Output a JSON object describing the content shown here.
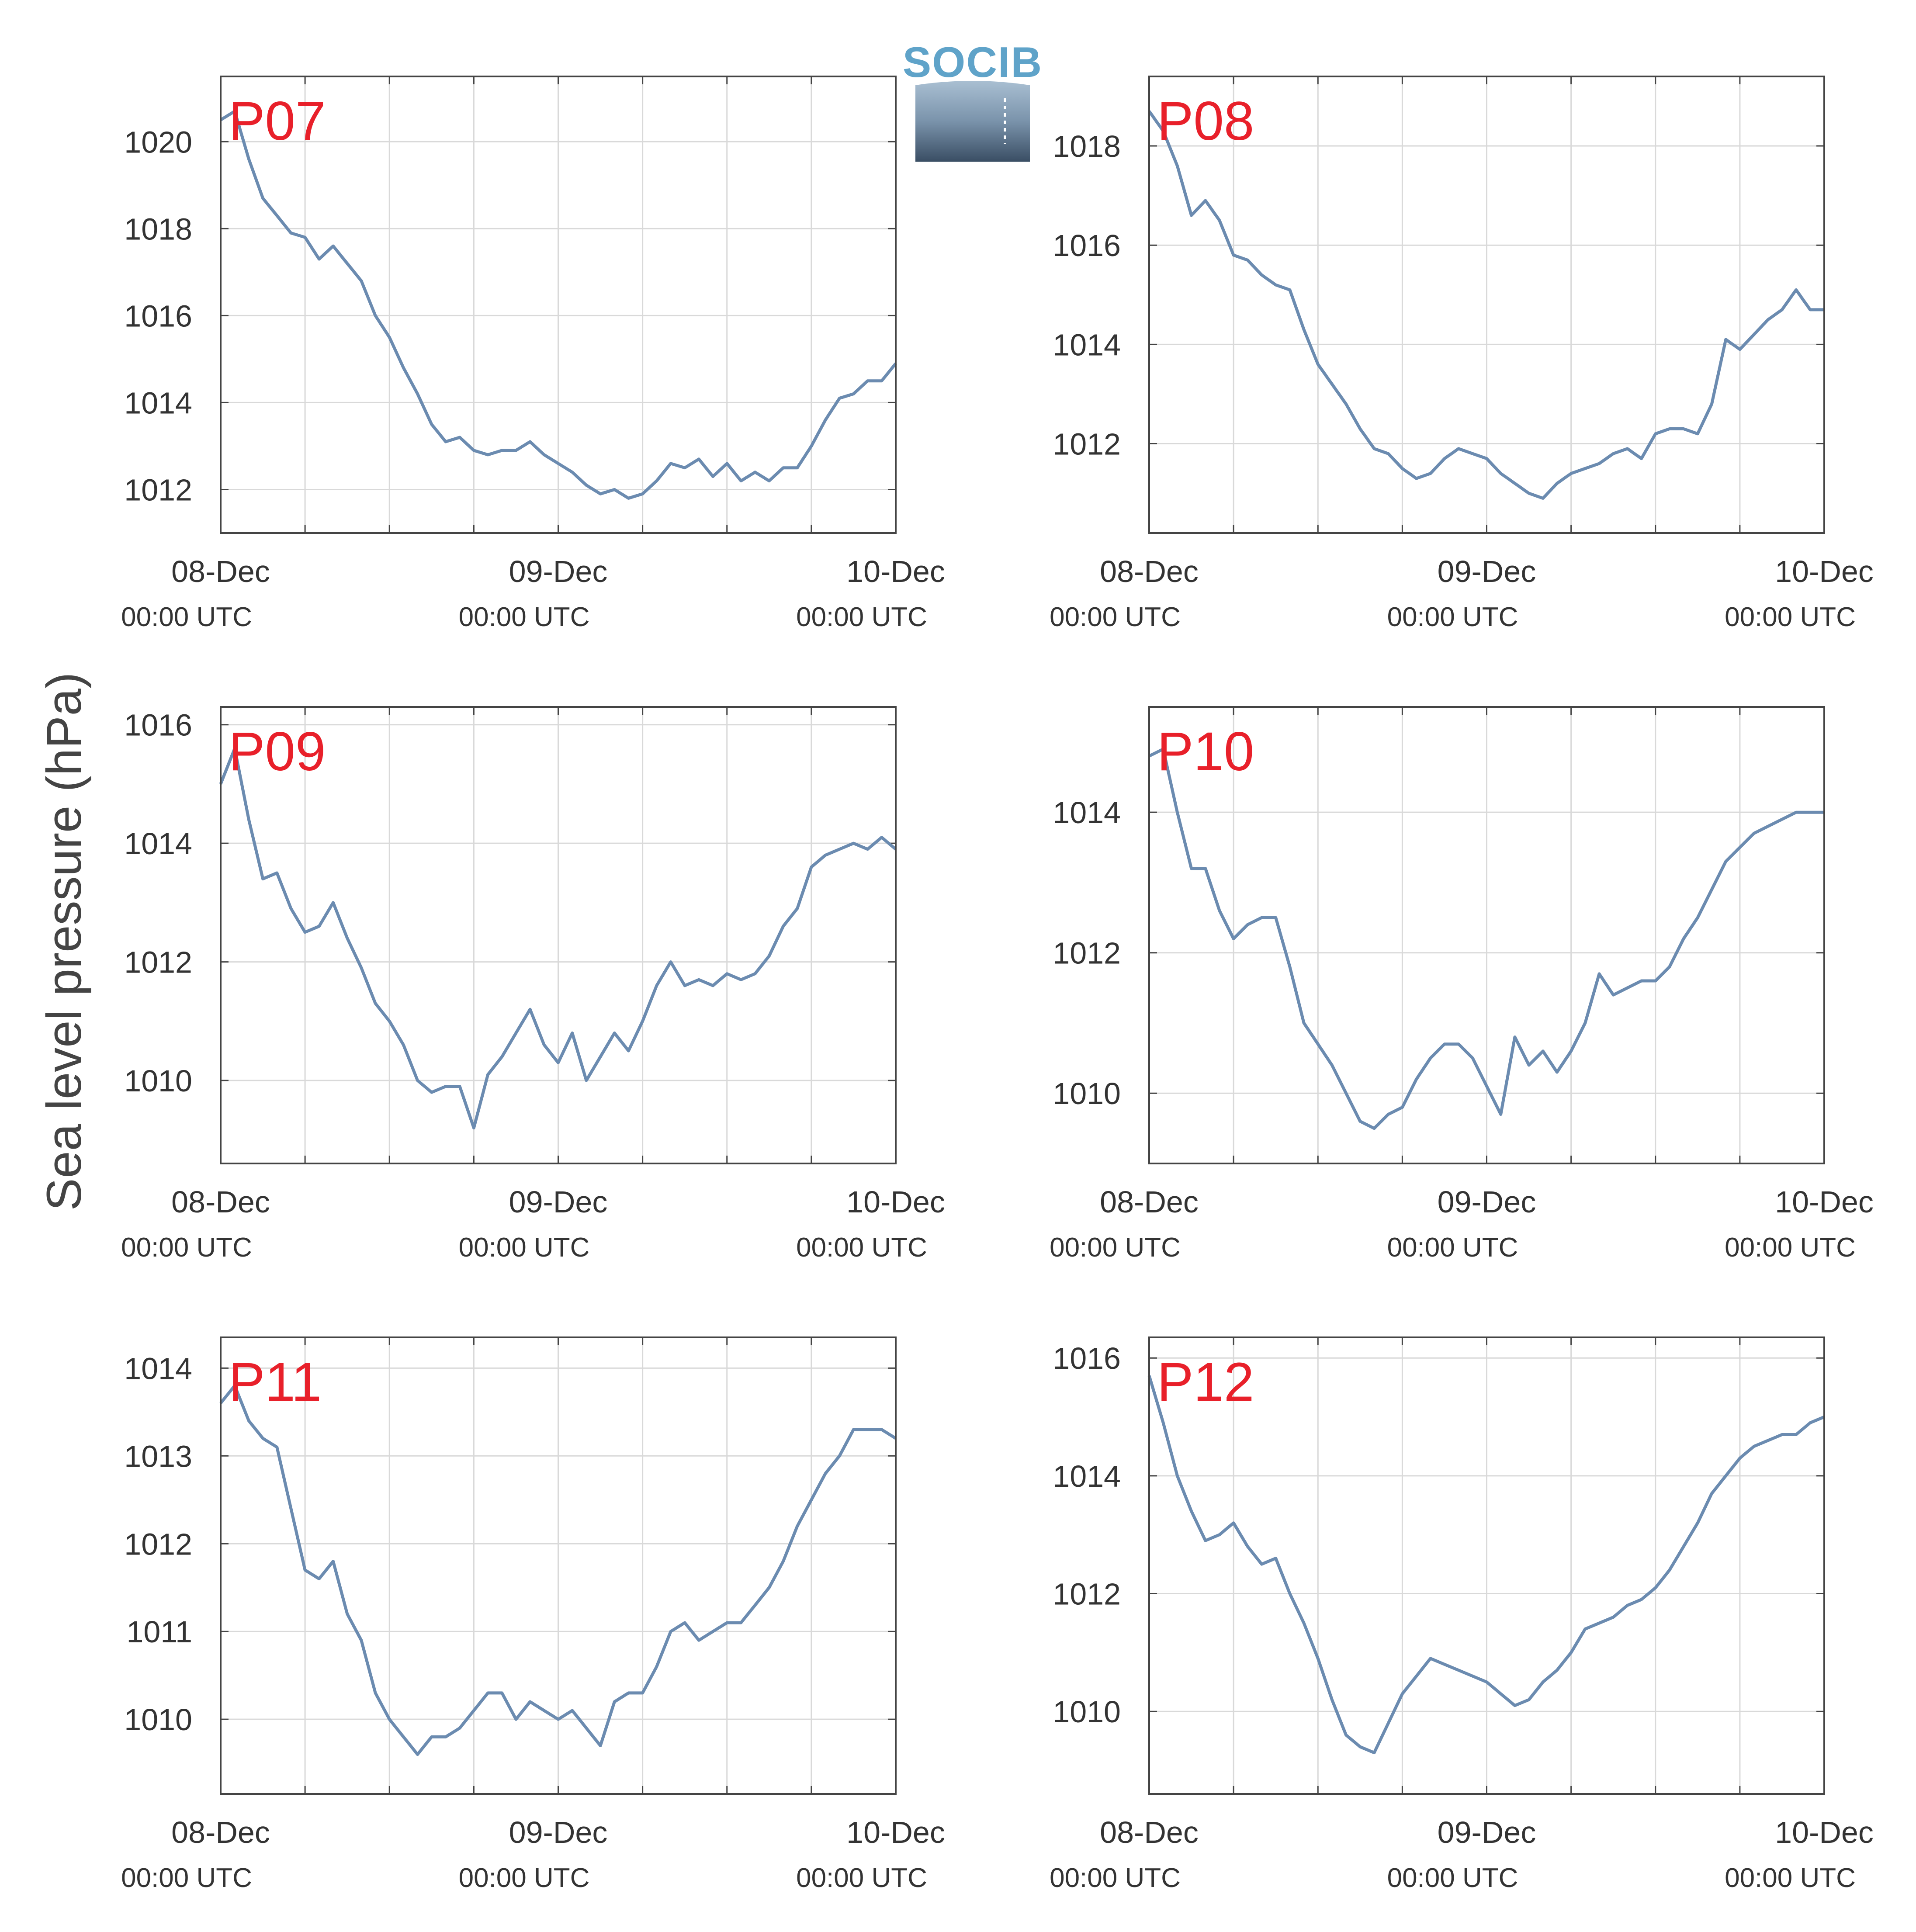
{
  "figure": {
    "ylabel": "Sea level pressure (hPa)",
    "logo_text": "SOCIB",
    "colors": {
      "line": "#6b8bb0",
      "station_label": "#e8202a",
      "axis": "#444444",
      "grid": "#d9d9d9",
      "text": "#333333"
    }
  },
  "chart_data": [
    {
      "type": "line",
      "station": "P07",
      "x_ticks": [
        {
          "date": "08-Dec",
          "time": "00:00 UTC"
        },
        {
          "date": "09-Dec",
          "time": "00:00 UTC"
        },
        {
          "date": "10-Dec",
          "time": "00:00 UTC"
        }
      ],
      "xlim_hours": [
        0,
        48
      ],
      "x_grid_step_hours": 6,
      "ylim": [
        1011,
        1021.5
      ],
      "yticks": [
        1012,
        1014,
        1016,
        1018,
        1020
      ],
      "grid": true,
      "series": [
        {
          "x_hours": [
            0,
            1,
            2,
            3,
            4,
            5,
            6,
            7,
            8,
            9,
            10,
            11,
            12,
            13,
            14,
            15,
            16,
            17,
            18,
            19,
            20,
            21,
            22,
            23,
            24,
            25,
            26,
            27,
            28,
            29,
            30,
            31,
            32,
            33,
            34,
            35,
            36,
            37,
            38,
            39,
            40,
            41,
            42,
            43,
            44,
            45,
            46,
            47,
            48
          ],
          "values": [
            1020.5,
            1020.7,
            1019.6,
            1018.7,
            1018.3,
            1017.9,
            1017.8,
            1017.3,
            1017.6,
            1017.2,
            1016.8,
            1016.0,
            1015.5,
            1014.8,
            1014.2,
            1013.5,
            1013.1,
            1013.2,
            1012.9,
            1012.8,
            1012.9,
            1012.9,
            1013.1,
            1012.8,
            1012.6,
            1012.4,
            1012.1,
            1011.9,
            1012.0,
            1011.8,
            1011.9,
            1012.2,
            1012.6,
            1012.5,
            1012.7,
            1012.3,
            1012.6,
            1012.2,
            1012.4,
            1012.2,
            1012.5,
            1012.5,
            1013.0,
            1013.6,
            1014.1,
            1014.2,
            1014.5,
            1014.5,
            1014.9
          ]
        }
      ]
    },
    {
      "type": "line",
      "station": "P08",
      "x_ticks": [
        {
          "date": "08-Dec",
          "time": "00:00 UTC"
        },
        {
          "date": "09-Dec",
          "time": "00:00 UTC"
        },
        {
          "date": "10-Dec",
          "time": "00:00 UTC"
        }
      ],
      "xlim_hours": [
        0,
        48
      ],
      "x_grid_step_hours": 6,
      "ylim": [
        1010.2,
        1019.4
      ],
      "yticks": [
        1012,
        1014,
        1016,
        1018
      ],
      "grid": true,
      "series": [
        {
          "x_hours": [
            0,
            1,
            2,
            3,
            4,
            5,
            6,
            7,
            8,
            9,
            10,
            11,
            12,
            13,
            14,
            15,
            16,
            17,
            18,
            19,
            20,
            21,
            22,
            23,
            24,
            25,
            26,
            27,
            28,
            29,
            30,
            31,
            32,
            33,
            34,
            35,
            36,
            37,
            38,
            39,
            40,
            41,
            42,
            43,
            44,
            45,
            46,
            47,
            48
          ],
          "values": [
            1018.7,
            1018.3,
            1017.6,
            1016.6,
            1016.9,
            1016.5,
            1015.8,
            1015.7,
            1015.4,
            1015.2,
            1015.1,
            1014.3,
            1013.6,
            1013.2,
            1012.8,
            1012.3,
            1011.9,
            1011.8,
            1011.5,
            1011.3,
            1011.4,
            1011.7,
            1011.9,
            1011.8,
            1011.7,
            1011.4,
            1011.2,
            1011.0,
            1010.9,
            1011.2,
            1011.4,
            1011.5,
            1011.6,
            1011.8,
            1011.9,
            1011.7,
            1012.2,
            1012.3,
            1012.3,
            1012.2,
            1012.8,
            1014.1,
            1013.9,
            1014.2,
            1014.5,
            1014.7,
            1015.1,
            1014.7,
            1014.7
          ]
        }
      ]
    },
    {
      "type": "line",
      "station": "P09",
      "x_ticks": [
        {
          "date": "08-Dec",
          "time": "00:00 UTC"
        },
        {
          "date": "09-Dec",
          "time": "00:00 UTC"
        },
        {
          "date": "10-Dec",
          "time": "00:00 UTC"
        }
      ],
      "xlim_hours": [
        0,
        48
      ],
      "x_grid_step_hours": 6,
      "ylim": [
        1008.6,
        1016.3
      ],
      "yticks": [
        1010,
        1012,
        1014,
        1016
      ],
      "grid": true,
      "series": [
        {
          "x_hours": [
            0,
            1,
            2,
            3,
            4,
            5,
            6,
            7,
            8,
            9,
            10,
            11,
            12,
            13,
            14,
            15,
            16,
            17,
            18,
            19,
            20,
            21,
            22,
            23,
            24,
            25,
            26,
            27,
            28,
            29,
            30,
            31,
            32,
            33,
            34,
            35,
            36,
            37,
            38,
            39,
            40,
            41,
            42,
            43,
            44,
            45,
            46,
            47,
            48
          ],
          "values": [
            1015.0,
            1015.6,
            1014.4,
            1013.4,
            1013.5,
            1012.9,
            1012.5,
            1012.6,
            1013.0,
            1012.4,
            1011.9,
            1011.3,
            1011.0,
            1010.6,
            1010.0,
            1009.8,
            1009.9,
            1009.9,
            1009.2,
            1010.1,
            1010.4,
            1010.8,
            1011.2,
            1010.6,
            1010.3,
            1010.8,
            1010.0,
            1010.4,
            1010.8,
            1010.5,
            1011.0,
            1011.6,
            1012.0,
            1011.6,
            1011.7,
            1011.6,
            1011.8,
            1011.7,
            1011.8,
            1012.1,
            1012.6,
            1012.9,
            1013.6,
            1013.8,
            1013.9,
            1014.0,
            1013.9,
            1014.1,
            1013.9
          ]
        }
      ]
    },
    {
      "type": "line",
      "station": "P10",
      "x_ticks": [
        {
          "date": "08-Dec",
          "time": "00:00 UTC"
        },
        {
          "date": "09-Dec",
          "time": "00:00 UTC"
        },
        {
          "date": "10-Dec",
          "time": "00:00 UTC"
        }
      ],
      "xlim_hours": [
        0,
        48
      ],
      "x_grid_step_hours": 6,
      "ylim": [
        1009.0,
        1015.5
      ],
      "yticks": [
        1010,
        1012,
        1014
      ],
      "grid": true,
      "series": [
        {
          "x_hours": [
            0,
            1,
            2,
            3,
            4,
            5,
            6,
            7,
            8,
            9,
            10,
            11,
            12,
            13,
            14,
            15,
            16,
            17,
            18,
            19,
            20,
            21,
            22,
            23,
            24,
            25,
            26,
            27,
            28,
            29,
            30,
            31,
            32,
            33,
            34,
            35,
            36,
            37,
            38,
            39,
            40,
            41,
            42,
            43,
            44,
            45,
            46,
            47,
            48
          ],
          "values": [
            1014.8,
            1014.9,
            1014.0,
            1013.2,
            1013.2,
            1012.6,
            1012.2,
            1012.4,
            1012.5,
            1012.5,
            1011.8,
            1011.0,
            1010.7,
            1010.4,
            1010.0,
            1009.6,
            1009.5,
            1009.7,
            1009.8,
            1010.2,
            1010.5,
            1010.7,
            1010.7,
            1010.5,
            1010.1,
            1009.7,
            1010.8,
            1010.4,
            1010.6,
            1010.3,
            1010.6,
            1011.0,
            1011.7,
            1011.4,
            1011.5,
            1011.6,
            1011.6,
            1011.8,
            1012.2,
            1012.5,
            1012.9,
            1013.3,
            1013.5,
            1013.7,
            1013.8,
            1013.9,
            1014.0,
            1014.0,
            1014.0
          ]
        }
      ]
    },
    {
      "type": "line",
      "station": "P11",
      "x_ticks": [
        {
          "date": "08-Dec",
          "time": "00:00 UTC"
        },
        {
          "date": "09-Dec",
          "time": "00:00 UTC"
        },
        {
          "date": "10-Dec",
          "time": "00:00 UTC"
        }
      ],
      "xlim_hours": [
        0,
        48
      ],
      "x_grid_step_hours": 6,
      "ylim": [
        1009.15,
        1014.35
      ],
      "yticks": [
        1010,
        1011,
        1012,
        1013,
        1014
      ],
      "grid": true,
      "series": [
        {
          "x_hours": [
            0,
            1,
            2,
            3,
            4,
            5,
            6,
            7,
            8,
            9,
            10,
            11,
            12,
            13,
            14,
            15,
            16,
            17,
            18,
            19,
            20,
            21,
            22,
            23,
            24,
            25,
            26,
            27,
            28,
            29,
            30,
            31,
            32,
            33,
            34,
            35,
            36,
            37,
            38,
            39,
            40,
            41,
            42,
            43,
            44,
            45,
            46,
            47,
            48
          ],
          "values": [
            1013.6,
            1013.8,
            1013.4,
            1013.2,
            1013.1,
            1012.4,
            1011.7,
            1011.6,
            1011.8,
            1011.2,
            1010.9,
            1010.3,
            1010.0,
            1009.8,
            1009.6,
            1009.8,
            1009.8,
            1009.9,
            1010.1,
            1010.3,
            1010.3,
            1010.0,
            1010.2,
            1010.1,
            1010.0,
            1010.1,
            1009.9,
            1009.7,
            1010.2,
            1010.3,
            1010.3,
            1010.6,
            1011.0,
            1011.1,
            1010.9,
            1011.0,
            1011.1,
            1011.1,
            1011.3,
            1011.5,
            1011.8,
            1012.2,
            1012.5,
            1012.8,
            1013.0,
            1013.3,
            1013.3,
            1013.3,
            1013.2
          ]
        }
      ]
    },
    {
      "type": "line",
      "station": "P12",
      "x_ticks": [
        {
          "date": "08-Dec",
          "time": "00:00 UTC"
        },
        {
          "date": "09-Dec",
          "time": "00:00 UTC"
        },
        {
          "date": "10-Dec",
          "time": "00:00 UTC"
        }
      ],
      "xlim_hours": [
        0,
        48
      ],
      "x_grid_step_hours": 6,
      "ylim": [
        1008.6,
        1016.35
      ],
      "yticks": [
        1010,
        1012,
        1014,
        1016
      ],
      "grid": true,
      "series": [
        {
          "x_hours": [
            0,
            1,
            2,
            3,
            4,
            5,
            6,
            7,
            8,
            9,
            10,
            11,
            12,
            13,
            14,
            15,
            16,
            17,
            18,
            19,
            20,
            21,
            22,
            23,
            24,
            25,
            26,
            27,
            28,
            29,
            30,
            31,
            32,
            33,
            34,
            35,
            36,
            37,
            38,
            39,
            40,
            41,
            42,
            43,
            44,
            45,
            46,
            47,
            48
          ],
          "values": [
            1015.7,
            1014.9,
            1014.0,
            1013.4,
            1012.9,
            1013.0,
            1013.2,
            1012.8,
            1012.5,
            1012.6,
            1012.0,
            1011.5,
            1010.9,
            1010.2,
            1009.6,
            1009.4,
            1009.3,
            1009.8,
            1010.3,
            1010.6,
            1010.9,
            1010.8,
            1010.7,
            1010.6,
            1010.5,
            1010.3,
            1010.1,
            1010.2,
            1010.5,
            1010.7,
            1011.0,
            1011.4,
            1011.5,
            1011.6,
            1011.8,
            1011.9,
            1012.1,
            1012.4,
            1012.8,
            1013.2,
            1013.7,
            1014.0,
            1014.3,
            1014.5,
            1014.6,
            1014.7,
            1014.7,
            1014.9,
            1015.0
          ]
        }
      ]
    }
  ]
}
